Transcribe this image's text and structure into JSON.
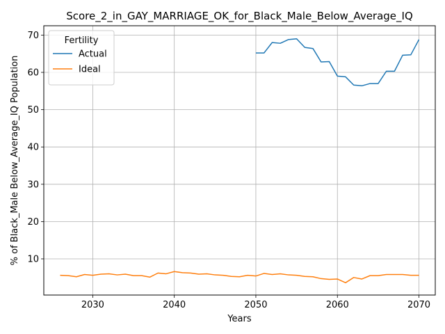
{
  "chart_data": {
    "type": "line",
    "title": "Score_2_in_GAY_MARRIAGE_OK_for_Black_Male_Below_Average_IQ",
    "xlabel": "Years",
    "ylabel": "% of Black_Male Below_Average_IQ Population",
    "xlim": [
      2024,
      2072
    ],
    "ylim": [
      0.3,
      72.5
    ],
    "xticks": [
      2030,
      2040,
      2050,
      2060,
      2070
    ],
    "yticks": [
      10,
      20,
      30,
      40,
      50,
      60,
      70
    ],
    "grid": true,
    "legend": {
      "title": "Fertility",
      "placement": "top-left"
    },
    "series": [
      {
        "name": "Actual",
        "color": "#1f77b4",
        "x": [
          2050,
          2051,
          2052,
          2053,
          2054,
          2055,
          2056,
          2057,
          2058,
          2059,
          2060,
          2061,
          2062,
          2063,
          2064,
          2065,
          2066,
          2067,
          2068,
          2069,
          2070
        ],
        "y": [
          65.2,
          65.2,
          68.0,
          67.8,
          68.8,
          69.0,
          66.7,
          66.4,
          62.8,
          62.9,
          59.0,
          58.8,
          56.6,
          56.4,
          57.0,
          57.0,
          60.3,
          60.3,
          64.6,
          64.7,
          68.8
        ]
      },
      {
        "name": "Ideal",
        "color": "#ff7f0e",
        "x": [
          2026,
          2027,
          2028,
          2029,
          2030,
          2031,
          2032,
          2033,
          2034,
          2035,
          2036,
          2037,
          2038,
          2039,
          2040,
          2041,
          2042,
          2043,
          2044,
          2045,
          2046,
          2047,
          2048,
          2049,
          2050,
          2051,
          2052,
          2053,
          2054,
          2055,
          2056,
          2057,
          2058,
          2059,
          2060,
          2061,
          2062,
          2063,
          2064,
          2065,
          2066,
          2067,
          2068,
          2069,
          2070
        ],
        "y": [
          5.6,
          5.5,
          5.2,
          5.8,
          5.6,
          5.9,
          6.0,
          5.7,
          5.9,
          5.5,
          5.5,
          5.1,
          6.2,
          6.0,
          6.6,
          6.3,
          6.2,
          5.9,
          6.0,
          5.7,
          5.6,
          5.3,
          5.2,
          5.6,
          5.4,
          6.1,
          5.8,
          6.0,
          5.7,
          5.6,
          5.3,
          5.2,
          4.7,
          4.5,
          4.6,
          3.6,
          5.0,
          4.6,
          5.5,
          5.5,
          5.8,
          5.8,
          5.8,
          5.6,
          5.6
        ]
      }
    ]
  }
}
